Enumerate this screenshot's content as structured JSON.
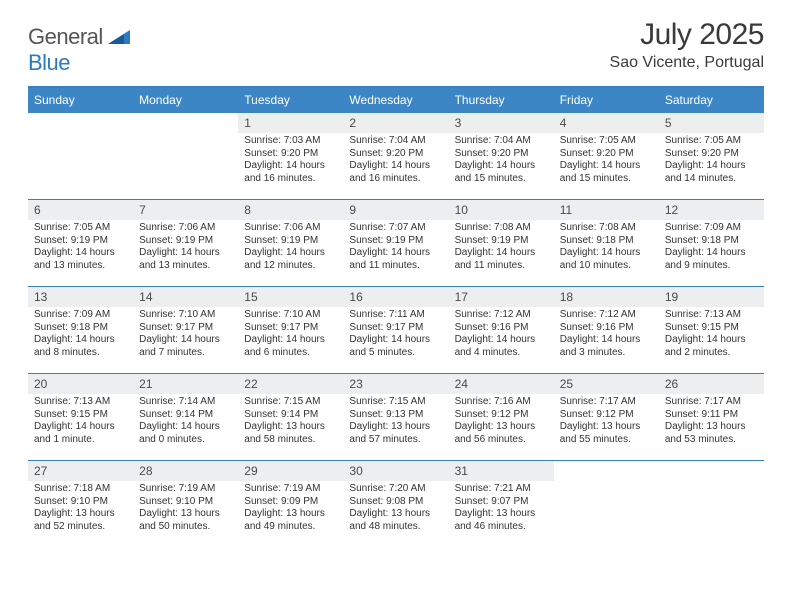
{
  "brand": {
    "part1": "General",
    "part2": "Blue"
  },
  "title": {
    "month": "July 2025",
    "location": "Sao Vicente, Portugal"
  },
  "colors": {
    "header_bg": "#3d86c6",
    "header_border": "#3a7fbf",
    "daynum_bg": "#eceeef",
    "text": "#333333",
    "brand_gray": "#555555",
    "brand_blue": "#2b7bbf"
  },
  "day_names": [
    "Sunday",
    "Monday",
    "Tuesday",
    "Wednesday",
    "Thursday",
    "Friday",
    "Saturday"
  ],
  "weeks": [
    [
      {
        "n": "",
        "empty": true
      },
      {
        "n": "",
        "empty": true
      },
      {
        "n": "1",
        "sunrise": "7:03 AM",
        "sunset": "9:20 PM",
        "daylight": "14 hours and 16 minutes."
      },
      {
        "n": "2",
        "sunrise": "7:04 AM",
        "sunset": "9:20 PM",
        "daylight": "14 hours and 16 minutes."
      },
      {
        "n": "3",
        "sunrise": "7:04 AM",
        "sunset": "9:20 PM",
        "daylight": "14 hours and 15 minutes."
      },
      {
        "n": "4",
        "sunrise": "7:05 AM",
        "sunset": "9:20 PM",
        "daylight": "14 hours and 15 minutes."
      },
      {
        "n": "5",
        "sunrise": "7:05 AM",
        "sunset": "9:20 PM",
        "daylight": "14 hours and 14 minutes."
      }
    ],
    [
      {
        "n": "6",
        "sunrise": "7:05 AM",
        "sunset": "9:19 PM",
        "daylight": "14 hours and 13 minutes."
      },
      {
        "n": "7",
        "sunrise": "7:06 AM",
        "sunset": "9:19 PM",
        "daylight": "14 hours and 13 minutes."
      },
      {
        "n": "8",
        "sunrise": "7:06 AM",
        "sunset": "9:19 PM",
        "daylight": "14 hours and 12 minutes."
      },
      {
        "n": "9",
        "sunrise": "7:07 AM",
        "sunset": "9:19 PM",
        "daylight": "14 hours and 11 minutes."
      },
      {
        "n": "10",
        "sunrise": "7:08 AM",
        "sunset": "9:19 PM",
        "daylight": "14 hours and 11 minutes."
      },
      {
        "n": "11",
        "sunrise": "7:08 AM",
        "sunset": "9:18 PM",
        "daylight": "14 hours and 10 minutes."
      },
      {
        "n": "12",
        "sunrise": "7:09 AM",
        "sunset": "9:18 PM",
        "daylight": "14 hours and 9 minutes."
      }
    ],
    [
      {
        "n": "13",
        "sunrise": "7:09 AM",
        "sunset": "9:18 PM",
        "daylight": "14 hours and 8 minutes."
      },
      {
        "n": "14",
        "sunrise": "7:10 AM",
        "sunset": "9:17 PM",
        "daylight": "14 hours and 7 minutes."
      },
      {
        "n": "15",
        "sunrise": "7:10 AM",
        "sunset": "9:17 PM",
        "daylight": "14 hours and 6 minutes."
      },
      {
        "n": "16",
        "sunrise": "7:11 AM",
        "sunset": "9:17 PM",
        "daylight": "14 hours and 5 minutes."
      },
      {
        "n": "17",
        "sunrise": "7:12 AM",
        "sunset": "9:16 PM",
        "daylight": "14 hours and 4 minutes."
      },
      {
        "n": "18",
        "sunrise": "7:12 AM",
        "sunset": "9:16 PM",
        "daylight": "14 hours and 3 minutes."
      },
      {
        "n": "19",
        "sunrise": "7:13 AM",
        "sunset": "9:15 PM",
        "daylight": "14 hours and 2 minutes."
      }
    ],
    [
      {
        "n": "20",
        "sunrise": "7:13 AM",
        "sunset": "9:15 PM",
        "daylight": "14 hours and 1 minute."
      },
      {
        "n": "21",
        "sunrise": "7:14 AM",
        "sunset": "9:14 PM",
        "daylight": "14 hours and 0 minutes."
      },
      {
        "n": "22",
        "sunrise": "7:15 AM",
        "sunset": "9:14 PM",
        "daylight": "13 hours and 58 minutes."
      },
      {
        "n": "23",
        "sunrise": "7:15 AM",
        "sunset": "9:13 PM",
        "daylight": "13 hours and 57 minutes."
      },
      {
        "n": "24",
        "sunrise": "7:16 AM",
        "sunset": "9:12 PM",
        "daylight": "13 hours and 56 minutes."
      },
      {
        "n": "25",
        "sunrise": "7:17 AM",
        "sunset": "9:12 PM",
        "daylight": "13 hours and 55 minutes."
      },
      {
        "n": "26",
        "sunrise": "7:17 AM",
        "sunset": "9:11 PM",
        "daylight": "13 hours and 53 minutes."
      }
    ],
    [
      {
        "n": "27",
        "sunrise": "7:18 AM",
        "sunset": "9:10 PM",
        "daylight": "13 hours and 52 minutes."
      },
      {
        "n": "28",
        "sunrise": "7:19 AM",
        "sunset": "9:10 PM",
        "daylight": "13 hours and 50 minutes."
      },
      {
        "n": "29",
        "sunrise": "7:19 AM",
        "sunset": "9:09 PM",
        "daylight": "13 hours and 49 minutes."
      },
      {
        "n": "30",
        "sunrise": "7:20 AM",
        "sunset": "9:08 PM",
        "daylight": "13 hours and 48 minutes."
      },
      {
        "n": "31",
        "sunrise": "7:21 AM",
        "sunset": "9:07 PM",
        "daylight": "13 hours and 46 minutes."
      },
      {
        "n": "",
        "empty": true
      },
      {
        "n": "",
        "empty": true
      }
    ]
  ],
  "labels": {
    "sunrise": "Sunrise:",
    "sunset": "Sunset:",
    "daylight": "Daylight:"
  }
}
